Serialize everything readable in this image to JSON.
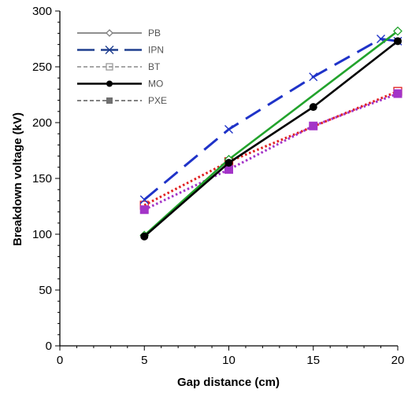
{
  "chart_data": {
    "type": "line",
    "title": "",
    "xlabel": "Gap distance (cm)",
    "ylabel": "Breakdown voltage (kV)",
    "xlim": [
      0,
      20
    ],
    "ylim": [
      0,
      300
    ],
    "xticks": [
      "0",
      "5",
      "10",
      "15",
      "20"
    ],
    "yticks": [
      "0",
      "50",
      "100",
      "150",
      "200",
      "250",
      "300"
    ],
    "grid": false,
    "legend_position": "top-left",
    "series": [
      {
        "name": "PB",
        "x": [
          5,
          10,
          20
        ],
        "y": [
          99,
          167,
          282
        ],
        "legend_color": "#7f7f7f",
        "line_color": "#22a32c",
        "marker": "diamond-open",
        "dash": "solid"
      },
      {
        "name": "IPN",
        "x": [
          5,
          10,
          15,
          19,
          20
        ],
        "y": [
          131,
          194,
          241,
          275,
          273
        ],
        "legend_color": "#1f3f8f",
        "line_color": "#1f33c8",
        "marker": "x",
        "dash": "long-dash"
      },
      {
        "name": "BT",
        "x": [
          5,
          10,
          20
        ],
        "y": [
          126,
          165,
          228
        ],
        "legend_color": "#9a9a9a",
        "line_color": "#e02020",
        "marker": "square-open",
        "dash": "dotted"
      },
      {
        "name": "MO",
        "x": [
          5,
          10,
          15,
          20
        ],
        "y": [
          98,
          164,
          214,
          273
        ],
        "legend_color": "#000000",
        "line_color": "#000000",
        "marker": "circle-filled",
        "dash": "solid"
      },
      {
        "name": "PXE",
        "x": [
          5,
          10,
          15,
          20
        ],
        "y": [
          122,
          158,
          197,
          226
        ],
        "legend_color": "#707070",
        "line_color": "#a334c8",
        "marker": "square-filled",
        "dash": "dotted"
      }
    ]
  },
  "legend": {
    "entries": [
      "PB",
      "IPN",
      "BT",
      "MO",
      "PXE"
    ]
  }
}
